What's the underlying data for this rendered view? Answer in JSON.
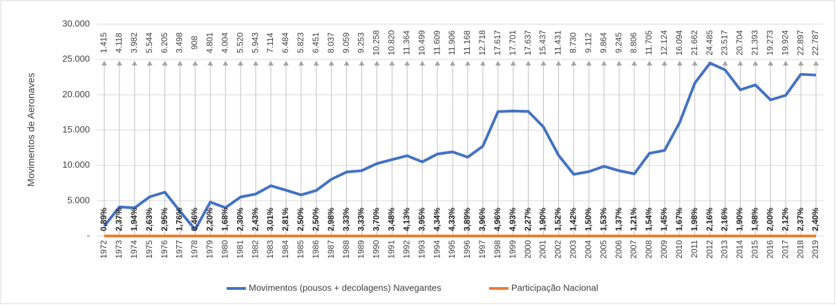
{
  "chart_data": {
    "type": "line",
    "ylabel": "Movimentos de Aeronaves",
    "categories": [
      "1972",
      "1973",
      "1974",
      "1975",
      "1976",
      "1977",
      "1978",
      "1979",
      "1980",
      "1981",
      "1982",
      "1983",
      "1984",
      "1985",
      "1986",
      "1987",
      "1988",
      "1989",
      "1990",
      "1991",
      "1992",
      "1993",
      "1994",
      "1995",
      "1996",
      "1997",
      "1998",
      "1999",
      "2000",
      "2001",
      "2002",
      "2003",
      "2004",
      "2005",
      "2006",
      "2007",
      "2008",
      "2009",
      "2010",
      "2011",
      "2012",
      "2013",
      "2014",
      "2015",
      "2016",
      "2017",
      "2018",
      "2019"
    ],
    "series": [
      {
        "name": "Movimentos (pousos + decolagens) Navegantes",
        "color": "#4472c4",
        "values": [
          1415,
          4118,
          3982,
          5544,
          6205,
          3498,
          908,
          4801,
          4004,
          5520,
          5943,
          7114,
          6484,
          5823,
          6451,
          8037,
          9059,
          9253,
          10258,
          10820,
          11364,
          10499,
          11609,
          11906,
          11168,
          12718,
          17617,
          17701,
          17637,
          15437,
          11431,
          8730,
          9112,
          9864,
          9245,
          8806,
          11705,
          12124,
          16094,
          21662,
          24485,
          23517,
          20704,
          21393,
          19273,
          19924,
          22897,
          22787
        ],
        "value_labels": [
          "1.415",
          "4.118",
          "3.982",
          "5.544",
          "6.205",
          "3.498",
          "908",
          "4.801",
          "4.004",
          "5.520",
          "5.943",
          "7.114",
          "6.484",
          "5.823",
          "6.451",
          "8.037",
          "9.059",
          "9.253",
          "10.258",
          "10.820",
          "11.364",
          "10.499",
          "11.609",
          "11.906",
          "11.168",
          "12.718",
          "17.617",
          "17.701",
          "17.637",
          "15.437",
          "11.431",
          "8.730",
          "9.112",
          "9.864",
          "9.245",
          "8.806",
          "11.705",
          "12.124",
          "16.094",
          "21.662",
          "24.485",
          "23.517",
          "20.704",
          "21.393",
          "19.273",
          "19.924",
          "22.897",
          "22.787"
        ]
      },
      {
        "name": "Participação Nacional",
        "color": "#ed7d31",
        "values": [
          0.89,
          2.37,
          1.94,
          2.63,
          2.95,
          1.76,
          0.46,
          2.2,
          1.68,
          2.3,
          2.43,
          3.01,
          2.81,
          2.5,
          2.5,
          2.98,
          3.33,
          3.33,
          3.7,
          3.48,
          4.13,
          3.95,
          4.34,
          4.33,
          3.89,
          3.96,
          4.96,
          4.93,
          2.27,
          1.9,
          1.52,
          1.42,
          1.5,
          1.53,
          1.37,
          1.21,
          1.54,
          1.45,
          1.67,
          1.98,
          2.16,
          2.16,
          1.9,
          1.98,
          2.0,
          2.12,
          2.37,
          2.4
        ],
        "value_labels": [
          "0,89%",
          "2,37%",
          "1,94%",
          "2,63%",
          "2,95%",
          "1,76%",
          "0,46%",
          "2,20%",
          "1,68%",
          "2,30%",
          "2,43%",
          "3,01%",
          "2,81%",
          "2,50%",
          "2,50%",
          "2,98%",
          "3,33%",
          "3,33%",
          "3,70%",
          "3,48%",
          "4,13%",
          "3,95%",
          "4,34%",
          "4,33%",
          "3,89%",
          "3,96%",
          "4,96%",
          "4,93%",
          "2,27%",
          "1,90%",
          "1,52%",
          "1,42%",
          "1,50%",
          "1,53%",
          "1,37%",
          "1,21%",
          "1,54%",
          "1,45%",
          "1,67%",
          "1,98%",
          "2,16%",
          "2,16%",
          "1,90%",
          "1,98%",
          "2,00%",
          "2,12%",
          "2,37%",
          "2,40%"
        ]
      }
    ],
    "ylim": [
      0,
      30000
    ],
    "yticks": [
      {
        "value": 0,
        "label": "-"
      },
      {
        "value": 5000,
        "label": "5.000"
      },
      {
        "value": 10000,
        "label": "10.000"
      },
      {
        "value": 15000,
        "label": "15.000"
      },
      {
        "value": 20000,
        "label": "20.000"
      },
      {
        "value": 25000,
        "label": "25.000"
      },
      {
        "value": 30000,
        "label": "30.000"
      }
    ],
    "grid": true,
    "legend": "bottom"
  }
}
